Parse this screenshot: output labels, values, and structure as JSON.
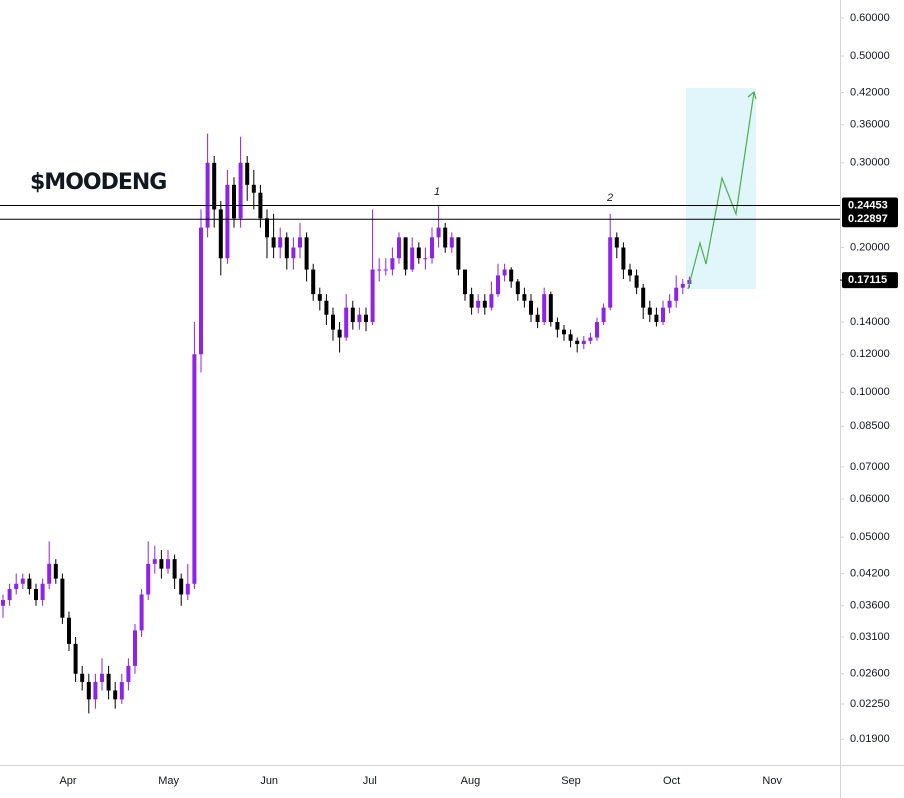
{
  "chart_data": {
    "type": "candlestick",
    "title": "$MOODENG",
    "log_scale": true,
    "up_color": "#8f22e8",
    "down_color": "#000000",
    "ylim": [
      0.0168,
      0.654
    ],
    "yticks": [
      {
        "value": 0.6,
        "label": "0.60000"
      },
      {
        "value": 0.5,
        "label": "0.50000"
      },
      {
        "value": 0.42,
        "label": "0.42000"
      },
      {
        "value": 0.36,
        "label": "0.36000"
      },
      {
        "value": 0.3,
        "label": "0.30000"
      },
      {
        "value": 0.2,
        "label": "0.20000"
      },
      {
        "value": 0.14,
        "label": "0.14000"
      },
      {
        "value": 0.12,
        "label": "0.12000"
      },
      {
        "value": 0.1,
        "label": "0.10000"
      },
      {
        "value": 0.085,
        "label": "0.08500"
      },
      {
        "value": 0.07,
        "label": "0.07000"
      },
      {
        "value": 0.06,
        "label": "0.06000"
      },
      {
        "value": 0.05,
        "label": "0.05000"
      },
      {
        "value": 0.042,
        "label": "0.04200"
      },
      {
        "value": 0.036,
        "label": "0.03600"
      },
      {
        "value": 0.031,
        "label": "0.03100"
      },
      {
        "value": 0.026,
        "label": "0.02600"
      },
      {
        "value": 0.0225,
        "label": "0.02250"
      },
      {
        "value": 0.019,
        "label": "0.01900"
      }
    ],
    "x_labels": [
      "Apr",
      "May",
      "Jun",
      "Jul",
      "Aug",
      "Sep",
      "Oct",
      "Nov"
    ],
    "levels": [
      0.24453,
      0.22897
    ],
    "last_price": 0.17115,
    "annotations": [
      "1",
      "2"
    ],
    "open": [
      0.036,
      0.037,
      0.039,
      0.04,
      0.041,
      0.039,
      0.037,
      0.04,
      0.044,
      0.041,
      0.034,
      0.03,
      0.026,
      0.025,
      0.023,
      0.025,
      0.026,
      0.024,
      0.023,
      0.025,
      0.027,
      0.032,
      0.038,
      0.044,
      0.045,
      0.043,
      0.045,
      0.041,
      0.038,
      0.04,
      0.12,
      0.22,
      0.3,
      0.24,
      0.19,
      0.27,
      0.23,
      0.3,
      0.27,
      0.26,
      0.23,
      0.21,
      0.2,
      0.21,
      0.19,
      0.2,
      0.21,
      0.18,
      0.16,
      0.155,
      0.145,
      0.135,
      0.13,
      0.15,
      0.14,
      0.145,
      0.14,
      0.18,
      0.18,
      0.18,
      0.19,
      0.21,
      0.18,
      0.2,
      0.19,
      0.19,
      0.21,
      0.22,
      0.2,
      0.21,
      0.18,
      0.16,
      0.15,
      0.155,
      0.15,
      0.16,
      0.175,
      0.18,
      0.17,
      0.16,
      0.155,
      0.145,
      0.14,
      0.16,
      0.14,
      0.135,
      0.132,
      0.128,
      0.126,
      0.128,
      0.13,
      0.14,
      0.15,
      0.21,
      0.2,
      0.18,
      0.175,
      0.165,
      0.15,
      0.145,
      0.14,
      0.15,
      0.155,
      0.165,
      0.168
    ],
    "high": [
      0.038,
      0.04,
      0.042,
      0.042,
      0.042,
      0.04,
      0.041,
      0.049,
      0.045,
      0.042,
      0.035,
      0.031,
      0.027,
      0.026,
      0.026,
      0.028,
      0.027,
      0.025,
      0.026,
      0.028,
      0.033,
      0.039,
      0.049,
      0.048,
      0.047,
      0.047,
      0.046,
      0.042,
      0.044,
      0.14,
      0.24,
      0.345,
      0.31,
      0.25,
      0.29,
      0.28,
      0.34,
      0.31,
      0.29,
      0.27,
      0.24,
      0.235,
      0.22,
      0.215,
      0.21,
      0.225,
      0.215,
      0.185,
      0.165,
      0.16,
      0.15,
      0.14,
      0.16,
      0.155,
      0.15,
      0.15,
      0.24,
      0.19,
      0.19,
      0.2,
      0.215,
      0.21,
      0.21,
      0.205,
      0.2,
      0.22,
      0.245,
      0.225,
      0.215,
      0.21,
      0.18,
      0.165,
      0.16,
      0.16,
      0.17,
      0.185,
      0.185,
      0.182,
      0.172,
      0.165,
      0.16,
      0.15,
      0.165,
      0.162,
      0.143,
      0.138,
      0.135,
      0.13,
      0.131,
      0.133,
      0.143,
      0.153,
      0.235,
      0.215,
      0.205,
      0.185,
      0.18,
      0.168,
      0.155,
      0.15,
      0.155,
      0.16,
      0.175,
      0.172,
      0.174
    ],
    "low": [
      0.034,
      0.036,
      0.038,
      0.039,
      0.038,
      0.036,
      0.036,
      0.039,
      0.04,
      0.033,
      0.029,
      0.025,
      0.024,
      0.0215,
      0.022,
      0.024,
      0.023,
      0.022,
      0.0225,
      0.024,
      0.026,
      0.031,
      0.037,
      0.042,
      0.041,
      0.042,
      0.039,
      0.036,
      0.037,
      0.039,
      0.11,
      0.21,
      0.22,
      0.175,
      0.185,
      0.22,
      0.22,
      0.25,
      0.24,
      0.22,
      0.19,
      0.19,
      0.19,
      0.18,
      0.18,
      0.19,
      0.17,
      0.155,
      0.148,
      0.138,
      0.128,
      0.121,
      0.128,
      0.135,
      0.135,
      0.134,
      0.138,
      0.17,
      0.175,
      0.175,
      0.185,
      0.175,
      0.178,
      0.185,
      0.18,
      0.185,
      0.2,
      0.195,
      0.195,
      0.175,
      0.155,
      0.145,
      0.146,
      0.145,
      0.148,
      0.158,
      0.17,
      0.165,
      0.155,
      0.15,
      0.14,
      0.136,
      0.138,
      0.137,
      0.13,
      0.128,
      0.124,
      0.121,
      0.123,
      0.126,
      0.128,
      0.138,
      0.148,
      0.19,
      0.172,
      0.17,
      0.16,
      0.142,
      0.14,
      0.137,
      0.138,
      0.146,
      0.15,
      0.16,
      0.165
    ],
    "close": [
      0.037,
      0.039,
      0.04,
      0.041,
      0.039,
      0.037,
      0.04,
      0.044,
      0.041,
      0.034,
      0.03,
      0.026,
      0.025,
      0.023,
      0.025,
      0.026,
      0.024,
      0.023,
      0.025,
      0.027,
      0.032,
      0.038,
      0.044,
      0.045,
      0.043,
      0.045,
      0.041,
      0.038,
      0.04,
      0.12,
      0.22,
      0.3,
      0.24,
      0.19,
      0.27,
      0.23,
      0.3,
      0.27,
      0.26,
      0.23,
      0.21,
      0.2,
      0.21,
      0.19,
      0.2,
      0.21,
      0.18,
      0.16,
      0.155,
      0.145,
      0.135,
      0.13,
      0.15,
      0.14,
      0.145,
      0.14,
      0.18,
      0.18,
      0.18,
      0.19,
      0.21,
      0.18,
      0.2,
      0.19,
      0.19,
      0.21,
      0.22,
      0.2,
      0.21,
      0.18,
      0.16,
      0.15,
      0.155,
      0.15,
      0.16,
      0.175,
      0.18,
      0.17,
      0.16,
      0.155,
      0.145,
      0.14,
      0.16,
      0.14,
      0.135,
      0.132,
      0.128,
      0.126,
      0.128,
      0.13,
      0.14,
      0.15,
      0.21,
      0.2,
      0.18,
      0.175,
      0.165,
      0.15,
      0.145,
      0.14,
      0.15,
      0.155,
      0.165,
      0.168,
      0.17115
    ]
  }
}
